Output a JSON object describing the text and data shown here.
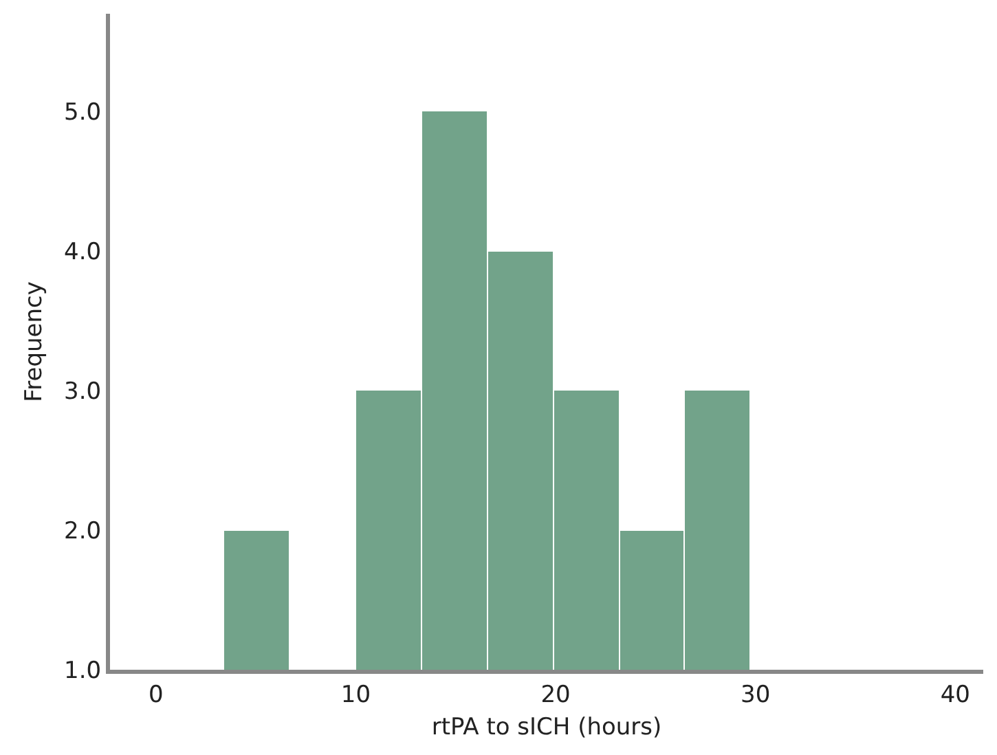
{
  "chart_data": {
    "type": "histogram",
    "xlabel": "rtPA to sICH (hours)",
    "ylabel": "Frequency",
    "bins": [
      3.4,
      6.7,
      10,
      13.3,
      16.6,
      19.9,
      23.2,
      26.5,
      29.8
    ],
    "values": [
      2,
      null,
      3,
      5,
      4,
      3,
      2,
      3
    ],
    "color": "#72a38a",
    "xlim": [
      -2.3,
      41.4
    ],
    "xticks": [
      0,
      10,
      20,
      30,
      40
    ],
    "ylim": [
      1,
      5.7
    ],
    "yticks": [
      {
        "value": 1,
        "label": "1.0"
      },
      {
        "value": 2,
        "label": "2.0"
      },
      {
        "value": 3,
        "label": "3.0"
      },
      {
        "value": 4,
        "label": "4.0"
      },
      {
        "value": 5,
        "label": "5.0"
      }
    ],
    "grid": false
  }
}
